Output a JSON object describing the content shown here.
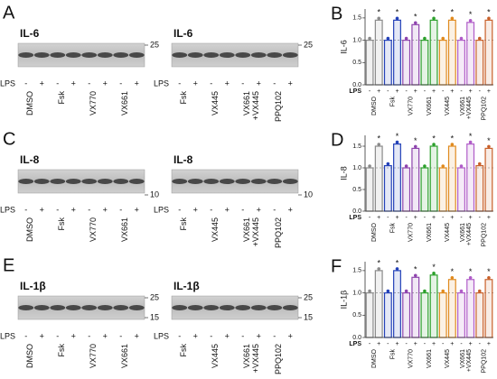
{
  "blots": [
    {
      "label": "A",
      "panels": [
        {
          "title": "IL-6",
          "markers": [
            "25"
          ],
          "lps_label": "LPS",
          "lps": [
            "-",
            "+",
            "-",
            "+",
            "-",
            "+",
            "-",
            "+"
          ],
          "lanes": [
            [
              "DMSO"
            ],
            [
              "Fsk"
            ],
            [
              "VX770"
            ],
            [
              "VX661"
            ]
          ]
        },
        {
          "title": "IL-6",
          "markers": [
            "25"
          ],
          "lps_label": "LPS",
          "lps": [
            "-",
            "+",
            "-",
            "+",
            "-",
            "+",
            "-",
            "+"
          ],
          "lanes": [
            [
              "Fsk"
            ],
            [
              "VX445"
            ],
            [
              "VX661",
              "+VX445"
            ],
            [
              "PPQ102"
            ]
          ]
        }
      ]
    },
    {
      "label": "C",
      "panels": [
        {
          "title": "IL-8",
          "markers": [
            "10"
          ],
          "lps_label": "LPS",
          "lps": [
            "-",
            "+",
            "-",
            "+",
            "-",
            "+",
            "-",
            "+"
          ],
          "lanes": [
            [
              "DMSO"
            ],
            [
              "Fsk"
            ],
            [
              "VX770"
            ],
            [
              "VX661"
            ]
          ]
        },
        {
          "title": "IL-8",
          "markers": [
            "10"
          ],
          "lps_label": "LPS",
          "lps": [
            "-",
            "+",
            "-",
            "+",
            "-",
            "+",
            "-",
            "+"
          ],
          "lanes": [
            [
              "Fsk"
            ],
            [
              "VX445"
            ],
            [
              "VX661",
              "+VX445"
            ],
            [
              "PPQ102"
            ]
          ]
        }
      ]
    },
    {
      "label": "E",
      "panels": [
        {
          "title": "IL-1β",
          "markers": [
            "25",
            "15"
          ],
          "lps_label": "LPS",
          "lps": [
            "-",
            "+",
            "-",
            "+",
            "-",
            "+",
            "-",
            "+"
          ],
          "lanes": [
            [
              "DMSO"
            ],
            [
              "Fsk"
            ],
            [
              "VX770"
            ],
            [
              "VX661"
            ]
          ]
        },
        {
          "title": "IL-1β",
          "markers": [
            "25",
            "15"
          ],
          "lps_label": "LPS",
          "lps": [
            "-",
            "+",
            "-",
            "+",
            "-",
            "+",
            "-",
            "+"
          ],
          "lanes": [
            [
              "Fsk"
            ],
            [
              "VX445"
            ],
            [
              "VX661",
              "+VX445"
            ],
            [
              "PPQ102"
            ]
          ]
        }
      ]
    }
  ],
  "chart_data": [
    {
      "type": "bar",
      "panel_label": "B",
      "ylabel": "IL-6",
      "lps_label": "LPS",
      "categories": [
        "-",
        "+",
        "-",
        "+",
        "-",
        "+",
        "-",
        "+",
        "-",
        "+",
        "-",
        "+",
        "-",
        "+"
      ],
      "groups": [
        [
          "DMSO"
        ],
        [
          "Fsk"
        ],
        [
          "VX770"
        ],
        [
          "VX661"
        ],
        [
          "VX445"
        ],
        [
          "VX661",
          "+VX445"
        ],
        [
          "PPQ102"
        ]
      ],
      "group_colors": [
        "#8a8a8a",
        "#2341b8",
        "#8e44ad",
        "#2ca02c",
        "#e08a1e",
        "#b05cc8",
        "#c8602a"
      ],
      "values": [
        1.0,
        1.45,
        1.0,
        1.45,
        1.0,
        1.35,
        1.0,
        1.45,
        1.0,
        1.45,
        1.0,
        1.4,
        1.0,
        1.45
      ],
      "stars": [
        "*",
        "*",
        "*",
        "*",
        "*",
        "*",
        "*"
      ],
      "ylim": [
        0,
        1.7
      ],
      "reference_line": 1.0,
      "yticks": [
        {
          "value": 0,
          "label": "0.0"
        },
        {
          "value": 0.5,
          "label": "0.5"
        },
        {
          "value": 1.0,
          "label": "1.0"
        },
        {
          "value": 1.5,
          "label": "1.5"
        }
      ]
    },
    {
      "type": "bar",
      "panel_label": "D",
      "ylabel": "IL-8",
      "lps_label": "LPS",
      "categories": [
        "-",
        "+",
        "-",
        "+",
        "-",
        "+",
        "-",
        "+",
        "-",
        "+",
        "-",
        "+",
        "-",
        "+"
      ],
      "groups": [
        [
          "DMSO"
        ],
        [
          "Fsk"
        ],
        [
          "VX770"
        ],
        [
          "VX661"
        ],
        [
          "VX445"
        ],
        [
          "VX661",
          "+VX445"
        ],
        [
          "PPQ102"
        ]
      ],
      "group_colors": [
        "#8a8a8a",
        "#2341b8",
        "#8e44ad",
        "#2ca02c",
        "#e08a1e",
        "#b05cc8",
        "#c8602a"
      ],
      "values": [
        1.0,
        1.5,
        1.05,
        1.55,
        1.0,
        1.45,
        1.0,
        1.5,
        1.0,
        1.5,
        1.0,
        1.55,
        1.05,
        1.45
      ],
      "stars": [
        "*",
        "*",
        "*",
        "*",
        "*",
        "*",
        "*"
      ],
      "ylim": [
        0,
        1.75
      ],
      "reference_line": 1.0,
      "yticks": [
        {
          "value": 0,
          "label": "0.0"
        },
        {
          "value": 0.5,
          "label": "0.5"
        },
        {
          "value": 1.0,
          "label": "1.0"
        },
        {
          "value": 1.5,
          "label": "1.5"
        }
      ]
    },
    {
      "type": "bar",
      "panel_label": "F",
      "ylabel": "IL-1β",
      "lps_label": "LPS",
      "categories": [
        "-",
        "+",
        "-",
        "+",
        "-",
        "+",
        "-",
        "+",
        "-",
        "+",
        "-",
        "+",
        "-",
        "+"
      ],
      "groups": [
        [
          "DMSO"
        ],
        [
          "Fsk"
        ],
        [
          "VX770"
        ],
        [
          "VX661"
        ],
        [
          "VX445"
        ],
        [
          "VX661",
          "+VX445"
        ],
        [
          "PPQ102"
        ]
      ],
      "group_colors": [
        "#8a8a8a",
        "#2341b8",
        "#8e44ad",
        "#2ca02c",
        "#e08a1e",
        "#b05cc8",
        "#c8602a"
      ],
      "values": [
        1.0,
        1.5,
        1.0,
        1.5,
        1.0,
        1.35,
        1.0,
        1.4,
        1.0,
        1.3,
        1.0,
        1.3,
        1.0,
        1.3
      ],
      "stars": [
        "*",
        "*",
        "*",
        "*",
        "*",
        "*",
        "*"
      ],
      "ylim": [
        0,
        1.7
      ],
      "reference_line": 1.0,
      "yticks": [
        {
          "value": 0,
          "label": "0.0"
        },
        {
          "value": 0.5,
          "label": "0.5"
        },
        {
          "value": 1.0,
          "label": "1.0"
        },
        {
          "value": 1.5,
          "label": "1.5"
        }
      ]
    }
  ]
}
